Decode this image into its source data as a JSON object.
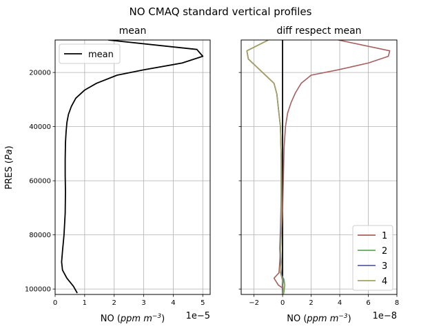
{
  "figure": {
    "suptitle": "NO CMAQ standard vertical profiles"
  },
  "chart_data": [
    {
      "type": "line",
      "title": "mean",
      "xlabel_prefix": "NO (",
      "xlabel_unit": "ppm m",
      "xlabel_exp": "−3",
      "xlabel_suffix": ")",
      "ylabel_prefix": "PRES (",
      "ylabel_unit": "Pa",
      "ylabel_suffix": ")",
      "xlim": [
        0,
        5.25
      ],
      "ylim": [
        102000,
        8000
      ],
      "x_scale_label": "1e−5",
      "xticks": [
        0,
        1,
        2,
        3,
        4,
        5
      ],
      "xtick_labels": [
        "0",
        "1",
        "2",
        "3",
        "4",
        "5"
      ],
      "yticks": [
        20000,
        40000,
        60000,
        80000,
        100000
      ],
      "ytick_labels": [
        "20000",
        "40000",
        "60000",
        "80000",
        "100000"
      ],
      "grid": true,
      "legend": {
        "position": "upper-left",
        "entries": [
          "mean"
        ]
      },
      "series": [
        {
          "name": "mean",
          "color": "#000000",
          "points": [
            [
              1.8,
              8000
            ],
            [
              4.8,
              11500
            ],
            [
              5.0,
              14000
            ],
            [
              4.3,
              16500
            ],
            [
              3.0,
              19000
            ],
            [
              2.1,
              21000
            ],
            [
              1.4,
              24000
            ],
            [
              1.0,
              26500
            ],
            [
              0.7,
              29500
            ],
            [
              0.55,
              32500
            ],
            [
              0.45,
              35500
            ],
            [
              0.4,
              38500
            ],
            [
              0.37,
              42000
            ],
            [
              0.35,
              46000
            ],
            [
              0.34,
              52000
            ],
            [
              0.34,
              58000
            ],
            [
              0.35,
              64000
            ],
            [
              0.34,
              72000
            ],
            [
              0.3,
              80000
            ],
            [
              0.25,
              86000
            ],
            [
              0.22,
              90000
            ],
            [
              0.25,
              93000
            ],
            [
              0.4,
              96000
            ],
            [
              0.62,
              99000
            ],
            [
              0.75,
              101500
            ]
          ]
        }
      ]
    },
    {
      "type": "line",
      "title": "diff respect mean",
      "xlabel_prefix": "NO (",
      "xlabel_unit": "ppm m",
      "xlabel_exp": "−3",
      "xlabel_suffix": ")",
      "xlim": [
        -2.9,
        8.0
      ],
      "ylim": [
        102000,
        8000
      ],
      "x_scale_label": "1e−8",
      "xticks": [
        -2,
        0,
        2,
        4,
        6,
        8
      ],
      "xtick_labels": [
        "−2",
        "0",
        "2",
        "4",
        "6",
        "8"
      ],
      "yticks": [
        20000,
        40000,
        60000,
        80000,
        100000
      ],
      "ytick_labels": [
        "",
        "",
        "",
        "",
        ""
      ],
      "grid": true,
      "legend": {
        "position": "lower-right",
        "entries": [
          "1",
          "2",
          "3",
          "4"
        ]
      },
      "series": [
        {
          "name": "0",
          "color": "#000000",
          "points": [
            [
              0,
              8000
            ],
            [
              0,
              102000
            ]
          ]
        },
        {
          "name": "1",
          "color": "#a85e5e",
          "points": [
            [
              3.9,
              8000
            ],
            [
              7.5,
              12000
            ],
            [
              7.4,
              14000
            ],
            [
              6.0,
              16500
            ],
            [
              3.9,
              19000
            ],
            [
              2.0,
              21000
            ],
            [
              1.3,
              24000
            ],
            [
              0.9,
              27500
            ],
            [
              0.6,
              31000
            ],
            [
              0.35,
              35000
            ],
            [
              0.2,
              40000
            ],
            [
              0.1,
              48000
            ],
            [
              0.05,
              60000
            ],
            [
              0.0,
              72000
            ],
            [
              -0.1,
              80000
            ],
            [
              -0.15,
              86000
            ],
            [
              -0.2,
              90000
            ],
            [
              -0.25,
              94000
            ],
            [
              -0.6,
              96000
            ],
            [
              -0.3,
              98500
            ],
            [
              0.1,
              100000
            ],
            [
              0.05,
              102000
            ]
          ]
        },
        {
          "name": "2",
          "color": "#5ea85e",
          "points": [
            [
              -1.0,
              8000
            ],
            [
              -2.5,
              12000
            ],
            [
              -2.4,
              15000
            ],
            [
              -1.8,
              18000
            ],
            [
              -1.2,
              21000
            ],
            [
              -0.6,
              24000
            ],
            [
              -0.4,
              28000
            ],
            [
              -0.3,
              33000
            ],
            [
              -0.15,
              40000
            ],
            [
              -0.1,
              52000
            ],
            [
              -0.1,
              65000
            ],
            [
              -0.1,
              78000
            ],
            [
              -0.15,
              85000
            ],
            [
              -0.1,
              90000
            ],
            [
              -0.15,
              94000
            ],
            [
              0.1,
              96500
            ],
            [
              0.15,
              98500
            ],
            [
              0.1,
              101000
            ],
            [
              0.05,
              102000
            ]
          ]
        },
        {
          "name": "3",
          "color": "#5e5ea8",
          "points": [
            [
              -1.0,
              8000
            ],
            [
              -2.5,
              12000
            ],
            [
              -2.4,
              15000
            ],
            [
              -1.8,
              18000
            ],
            [
              -1.2,
              21000
            ],
            [
              -0.6,
              24000
            ],
            [
              -0.4,
              28000
            ],
            [
              -0.3,
              33000
            ],
            [
              -0.15,
              40000
            ],
            [
              -0.1,
              52000
            ],
            [
              -0.1,
              65000
            ],
            [
              -0.15,
              78000
            ],
            [
              -0.2,
              85000
            ],
            [
              -0.15,
              90000
            ],
            [
              -0.1,
              94000
            ],
            [
              0.05,
              97000
            ],
            [
              0.0,
              100000
            ],
            [
              0.0,
              102000
            ]
          ]
        },
        {
          "name": "4",
          "color": "#a8a05e",
          "points": [
            [
              -1.0,
              8000
            ],
            [
              -2.5,
              12000
            ],
            [
              -2.4,
              15000
            ],
            [
              -1.8,
              18000
            ],
            [
              -1.2,
              21000
            ],
            [
              -0.6,
              24000
            ],
            [
              -0.4,
              28000
            ],
            [
              -0.3,
              33000
            ],
            [
              -0.15,
              40000
            ],
            [
              -0.1,
              52000
            ],
            [
              -0.1,
              65000
            ],
            [
              -0.1,
              78000
            ],
            [
              -0.15,
              85000
            ],
            [
              -0.1,
              90000
            ],
            [
              -0.15,
              94000
            ],
            [
              0.0,
              97000
            ],
            [
              0.05,
              100000
            ],
            [
              0.0,
              102000
            ]
          ]
        }
      ]
    }
  ]
}
